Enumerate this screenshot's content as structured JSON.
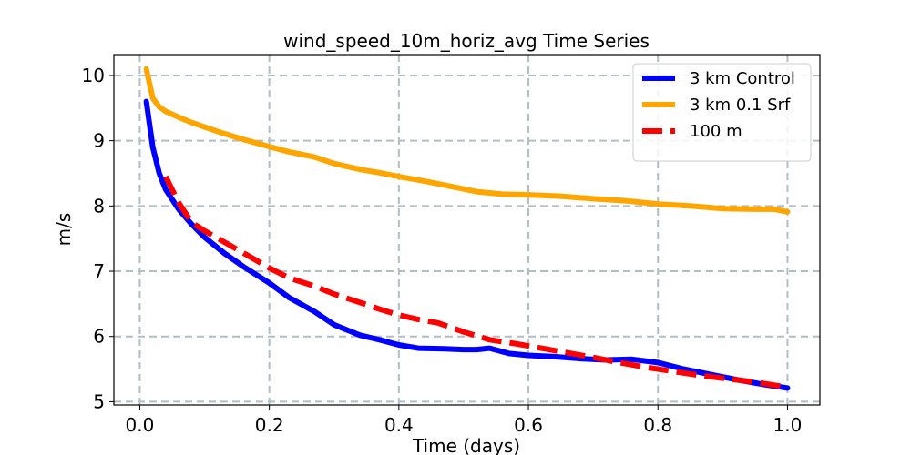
{
  "chart_data": {
    "type": "line",
    "title": "wind_speed_10m_horiz_avg Time Series",
    "xlabel": "Time (days)",
    "ylabel": "m/s",
    "xlim": [
      -0.04,
      1.05
    ],
    "ylim": [
      4.95,
      10.32
    ],
    "xticks": [
      0.0,
      0.2,
      0.4,
      0.6,
      0.8,
      1.0
    ],
    "xtick_labels": [
      "0.0",
      "0.2",
      "0.4",
      "0.6",
      "0.8",
      "1.0"
    ],
    "yticks": [
      5,
      6,
      7,
      8,
      9,
      10
    ],
    "ytick_labels": [
      "5",
      "6",
      "7",
      "8",
      "9",
      "10"
    ],
    "grid": true,
    "legend": "top-right",
    "series": [
      {
        "name": "3 km Control",
        "color": "#0000ff",
        "dash": "solid",
        "x": [
          0.01,
          0.02,
          0.03,
          0.04,
          0.06,
          0.08,
          0.1,
          0.13,
          0.16,
          0.2,
          0.23,
          0.27,
          0.3,
          0.34,
          0.37,
          0.4,
          0.43,
          0.47,
          0.5,
          0.52,
          0.54,
          0.57,
          0.6,
          0.64,
          0.68,
          0.72,
          0.76,
          0.8,
          0.84,
          0.88,
          0.92,
          0.96,
          1.0
        ],
        "y": [
          9.6,
          8.9,
          8.5,
          8.25,
          7.95,
          7.72,
          7.52,
          7.28,
          7.07,
          6.82,
          6.6,
          6.38,
          6.18,
          6.02,
          5.95,
          5.87,
          5.82,
          5.81,
          5.8,
          5.8,
          5.82,
          5.74,
          5.71,
          5.69,
          5.66,
          5.64,
          5.65,
          5.6,
          5.5,
          5.42,
          5.34,
          5.27,
          5.21
        ]
      },
      {
        "name": "3 km 0.1 Srf",
        "color": "#ffa500",
        "dash": "solid",
        "x": [
          0.01,
          0.02,
          0.03,
          0.04,
          0.06,
          0.08,
          0.1,
          0.13,
          0.16,
          0.2,
          0.23,
          0.27,
          0.3,
          0.34,
          0.37,
          0.4,
          0.44,
          0.48,
          0.52,
          0.56,
          0.6,
          0.65,
          0.7,
          0.75,
          0.8,
          0.85,
          0.9,
          0.95,
          0.98,
          1.0
        ],
        "y": [
          10.1,
          9.65,
          9.52,
          9.45,
          9.36,
          9.28,
          9.21,
          9.11,
          9.02,
          8.91,
          8.83,
          8.75,
          8.65,
          8.56,
          8.51,
          8.45,
          8.38,
          8.3,
          8.22,
          8.18,
          8.17,
          8.15,
          8.11,
          8.08,
          8.03,
          8.0,
          7.96,
          7.95,
          7.95,
          7.91
        ]
      },
      {
        "name": "100 m",
        "color": "#ff0000",
        "dash": "dashed",
        "x": [
          0.04,
          0.06,
          0.08,
          0.1,
          0.13,
          0.16,
          0.2,
          0.23,
          0.27,
          0.3,
          0.34,
          0.37,
          0.4,
          0.43,
          0.46,
          0.5,
          0.54,
          0.58,
          0.62,
          0.66,
          0.7,
          0.74,
          0.78,
          0.82,
          0.86,
          0.9,
          0.95,
          1.0
        ],
        "y": [
          8.45,
          8.05,
          7.75,
          7.62,
          7.45,
          7.28,
          7.05,
          6.9,
          6.77,
          6.65,
          6.52,
          6.42,
          6.33,
          6.26,
          6.21,
          6.07,
          5.95,
          5.89,
          5.82,
          5.75,
          5.68,
          5.6,
          5.53,
          5.47,
          5.41,
          5.36,
          5.3,
          5.22
        ]
      }
    ]
  }
}
